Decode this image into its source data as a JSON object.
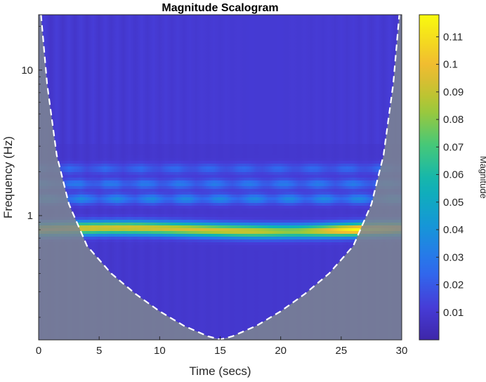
{
  "chart_data": {
    "type": "heatmap",
    "title": "Magnitude Scalogram",
    "xlabel": "Time (secs)",
    "ylabel": "Frequency (Hz)",
    "xlim": [
      0,
      30
    ],
    "ylim": [
      0.14,
      24
    ],
    "y_scale": "log",
    "x_ticks": [
      0,
      5,
      10,
      15,
      20,
      25,
      30
    ],
    "y_ticks": [
      1,
      10
    ],
    "colorbar": {
      "label": "Magnitude",
      "range": [
        0,
        0.118
      ],
      "ticks": [
        0.01,
        0.02,
        0.03,
        0.04,
        0.05,
        0.06,
        0.07,
        0.08,
        0.09,
        0.1,
        0.11
      ],
      "colormap": "parula"
    },
    "dominant_band": {
      "frequency_hz": 0.8,
      "time_range": [
        0,
        30
      ],
      "peak_magnitude": 0.11,
      "peak_time": 27
    },
    "secondary_bands_hz": [
      1.3,
      1.65,
      2.1
    ],
    "cone_of_influence": {
      "shape": "dashed white boundary",
      "points": [
        {
          "t": 0.2,
          "f": 24
        },
        {
          "t": 0.7,
          "f": 8
        },
        {
          "t": 1.5,
          "f": 2.6
        },
        {
          "t": 2.5,
          "f": 1.2
        },
        {
          "t": 4,
          "f": 0.62
        },
        {
          "t": 6,
          "f": 0.4
        },
        {
          "t": 8,
          "f": 0.29
        },
        {
          "t": 10,
          "f": 0.22
        },
        {
          "t": 12,
          "f": 0.175
        },
        {
          "t": 14,
          "f": 0.148
        },
        {
          "t": 15,
          "f": 0.141
        },
        {
          "t": 16,
          "f": 0.148
        },
        {
          "t": 18,
          "f": 0.175
        },
        {
          "t": 20,
          "f": 0.22
        },
        {
          "t": 22,
          "f": 0.29
        },
        {
          "t": 24,
          "f": 0.4
        },
        {
          "t": 26,
          "f": 0.62
        },
        {
          "t": 27.5,
          "f": 1.2
        },
        {
          "t": 28.5,
          "f": 2.6
        },
        {
          "t": 29.3,
          "f": 8
        },
        {
          "t": 29.8,
          "f": 24
        }
      ],
      "outside_fill": "#7d8590"
    }
  }
}
